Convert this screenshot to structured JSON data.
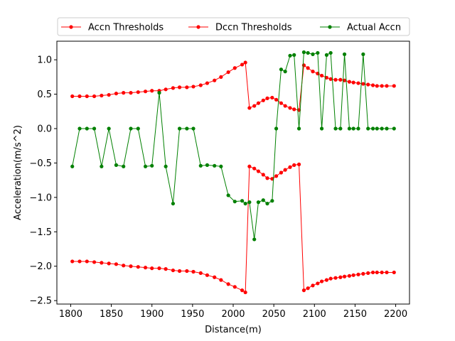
{
  "chart_data": {
    "type": "line",
    "xlabel": "Distance(m)",
    "ylabel": "Acceleration(m/s^2)",
    "xlim": [
      1783,
      2217
    ],
    "ylim": [
      -2.55,
      1.27
    ],
    "xticks": [
      1800,
      1850,
      1900,
      1950,
      2000,
      2050,
      2100,
      2150,
      2200
    ],
    "yticks": [
      -2.5,
      -2.0,
      -1.5,
      -1.0,
      -0.5,
      0.0,
      0.5,
      1.0
    ],
    "ytick_labels": [
      "−2.5",
      "−2.0",
      "−1.5",
      "−1.0",
      "−0.5",
      "0.0",
      "0.5",
      "1.0"
    ],
    "legend": {
      "placement": "top",
      "entries": [
        {
          "label": "Accn Thresholds",
          "color": "#ff0000"
        },
        {
          "label": "Dccn Thresholds",
          "color": "#ff0000"
        },
        {
          "label": "Actual Accn",
          "color": "#008000"
        }
      ]
    },
    "x": [
      1802,
      1811,
      1820,
      1829,
      1838,
      1847,
      1856,
      1865,
      1874,
      1883,
      1892,
      1900,
      1909,
      1917,
      1926,
      1934,
      1943,
      1951,
      1960,
      1968,
      1977,
      1985,
      1994,
      2002,
      2011,
      2015,
      2020,
      2026,
      2031,
      2037,
      2042,
      2048,
      2053,
      2059,
      2064,
      2070,
      2075,
      2081,
      2087,
      2092,
      2098,
      2104,
      2109,
      2115,
      2120,
      2126,
      2132,
      2137,
      2143,
      2148,
      2154,
      2160,
      2166,
      2172,
      2177,
      2183,
      2189,
      2198
    ],
    "series": [
      {
        "name": "Accn Thresholds",
        "color": "#ff0000",
        "values": [
          0.47,
          0.47,
          0.47,
          0.47,
          0.48,
          0.49,
          0.51,
          0.52,
          0.52,
          0.53,
          0.54,
          0.55,
          0.55,
          0.57,
          0.59,
          0.6,
          0.6,
          0.61,
          0.63,
          0.66,
          0.7,
          0.75,
          0.82,
          0.88,
          0.93,
          0.96,
          0.3,
          0.33,
          0.37,
          0.41,
          0.44,
          0.45,
          0.42,
          0.37,
          0.33,
          0.3,
          0.28,
          0.27,
          0.92,
          0.88,
          0.83,
          0.8,
          0.77,
          0.74,
          0.72,
          0.71,
          0.71,
          0.7,
          0.68,
          0.67,
          0.66,
          0.65,
          0.64,
          0.63,
          0.62,
          0.62,
          0.62,
          0.62
        ]
      },
      {
        "name": "Dccn Thresholds",
        "color": "#ff0000",
        "values": [
          -1.93,
          -1.93,
          -1.93,
          -1.94,
          -1.95,
          -1.96,
          -1.97,
          -1.99,
          -2.0,
          -2.01,
          -2.02,
          -2.03,
          -2.03,
          -2.04,
          -2.06,
          -2.07,
          -2.07,
          -2.08,
          -2.1,
          -2.13,
          -2.16,
          -2.2,
          -2.26,
          -2.3,
          -2.35,
          -2.38,
          -0.55,
          -0.58,
          -0.62,
          -0.67,
          -0.72,
          -0.73,
          -0.69,
          -0.64,
          -0.6,
          -0.56,
          -0.53,
          -0.52,
          -2.35,
          -2.32,
          -2.28,
          -2.25,
          -2.22,
          -2.2,
          -2.18,
          -2.17,
          -2.16,
          -2.15,
          -2.14,
          -2.13,
          -2.12,
          -2.11,
          -2.1,
          -2.09,
          -2.09,
          -2.09,
          -2.09,
          -2.09
        ]
      },
      {
        "name": "Actual Accn",
        "color": "#008000",
        "x": [
          1802,
          1811,
          1820,
          1829,
          1838,
          1847,
          1856,
          1865,
          1874,
          1883,
          1892,
          1900,
          1909,
          1917,
          1926,
          1934,
          1943,
          1951,
          1960,
          1968,
          1977,
          1985,
          1994,
          2002,
          2011,
          2015,
          2020,
          2026,
          2031,
          2037,
          2042,
          2048,
          2053,
          2059,
          2064,
          2070,
          2075,
          2081,
          2087,
          2092,
          2098,
          2104,
          2109,
          2115,
          2120,
          2126,
          2132,
          2137,
          2143,
          2148,
          2154,
          2160,
          2166,
          2172,
          2177,
          2183,
          2189,
          2198
        ],
        "values": [
          -0.55,
          0.0,
          0.0,
          0.0,
          -0.55,
          0.0,
          -0.53,
          -0.55,
          0.0,
          0.0,
          -0.55,
          -0.54,
          0.52,
          -0.55,
          -1.09,
          0.0,
          0.0,
          0.0,
          -0.54,
          -0.53,
          -0.54,
          -0.55,
          -0.97,
          -1.06,
          -1.05,
          -1.09,
          -1.07,
          -1.61,
          -1.07,
          -1.04,
          -1.09,
          -1.05,
          0.0,
          0.86,
          0.83,
          1.06,
          1.07,
          0.0,
          1.11,
          1.1,
          1.08,
          1.1,
          0.0,
          1.07,
          1.1,
          0.0,
          0.0,
          1.08,
          0.0,
          0.0,
          0.0,
          1.08,
          0.0,
          0.0,
          0.0,
          0.0,
          0.0,
          0.0
        ]
      }
    ]
  }
}
